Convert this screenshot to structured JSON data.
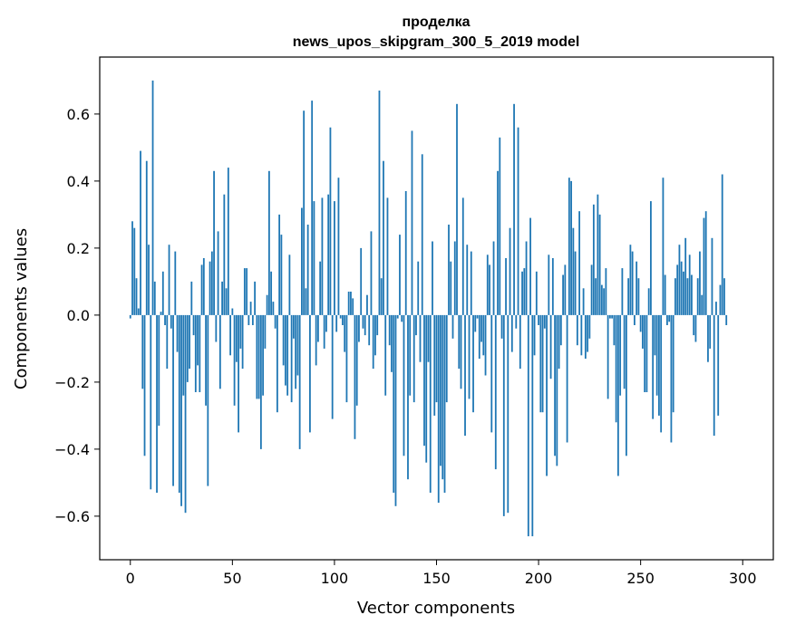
{
  "chart_data": {
    "type": "bar",
    "title_line1": "проделка",
    "title_line2": "news_upos_skipgram_300_5_2019 model",
    "xlabel": "Vector components",
    "ylabel": "Components values",
    "xlim": [
      -15,
      315
    ],
    "ylim": [
      -0.73,
      0.77
    ],
    "xticks": [
      0,
      50,
      100,
      150,
      200,
      250,
      300
    ],
    "xtick_labels": [
      "0",
      "50",
      "100",
      "150",
      "200",
      "250",
      "300"
    ],
    "yticks": [
      -0.6,
      -0.4,
      -0.2,
      0.0,
      0.2,
      0.4,
      0.6
    ],
    "ytick_labels": [
      "−0.6",
      "−0.4",
      "−0.2",
      "0.0",
      "0.2",
      "0.4",
      "0.6"
    ],
    "bar_color": "#1f77b4",
    "grid": false,
    "values": [
      -0.01,
      0.28,
      0.26,
      0.11,
      0.02,
      0.49,
      -0.22,
      -0.42,
      0.46,
      0.21,
      -0.52,
      0.7,
      0.1,
      -0.53,
      -0.33,
      0.01,
      0.13,
      -0.03,
      -0.16,
      0.21,
      -0.04,
      -0.51,
      0.19,
      -0.11,
      -0.53,
      -0.57,
      -0.24,
      -0.59,
      -0.2,
      -0.16,
      0.1,
      -0.06,
      -0.23,
      -0.15,
      -0.23,
      0.15,
      0.17,
      -0.27,
      -0.51,
      0.16,
      0.19,
      0.43,
      -0.08,
      0.25,
      -0.22,
      0.1,
      0.36,
      0.08,
      0.44,
      -0.12,
      0.02,
      -0.27,
      -0.14,
      -0.35,
      -0.1,
      -0.16,
      0.14,
      0.14,
      -0.03,
      0.04,
      -0.03,
      0.1,
      -0.25,
      -0.25,
      -0.4,
      -0.24,
      -0.1,
      0.06,
      0.43,
      0.13,
      0.04,
      -0.04,
      -0.29,
      0.3,
      0.24,
      -0.15,
      -0.21,
      -0.24,
      0.18,
      -0.26,
      -0.07,
      -0.22,
      -0.18,
      -0.4,
      0.32,
      0.61,
      0.08,
      0.27,
      -0.35,
      0.64,
      0.34,
      -0.15,
      -0.08,
      0.16,
      0.35,
      -0.1,
      -0.05,
      0.36,
      0.56,
      -0.31,
      0.34,
      -0.05,
      0.41,
      -0.01,
      -0.03,
      -0.11,
      -0.26,
      0.07,
      0.07,
      0.05,
      -0.37,
      -0.27,
      -0.08,
      0.2,
      -0.04,
      -0.06,
      0.06,
      -0.09,
      0.25,
      -0.16,
      -0.12,
      -0.06,
      0.67,
      0.11,
      0.46,
      -0.24,
      0.35,
      -0.09,
      -0.17,
      -0.53,
      -0.57,
      -0.01,
      0.24,
      -0.02,
      -0.42,
      0.37,
      -0.49,
      -0.24,
      0.55,
      -0.26,
      -0.06,
      0.16,
      -0.14,
      0.48,
      -0.39,
      -0.44,
      -0.14,
      -0.53,
      0.22,
      -0.3,
      -0.26,
      -0.56,
      -0.45,
      -0.49,
      -0.53,
      -0.26,
      0.27,
      0.16,
      -0.07,
      0.22,
      0.63,
      -0.16,
      -0.22,
      0.35,
      -0.36,
      0.21,
      -0.25,
      0.19,
      -0.29,
      -0.05,
      -0.01,
      -0.13,
      -0.08,
      -0.12,
      -0.18,
      0.18,
      0.15,
      -0.35,
      0.22,
      -0.46,
      0.43,
      0.53,
      -0.07,
      -0.6,
      0.17,
      -0.59,
      0.26,
      -0.11,
      0.63,
      -0.04,
      0.56,
      -0.16,
      0.13,
      0.14,
      0.22,
      -0.66,
      0.29,
      -0.66,
      -0.12,
      0.13,
      -0.03,
      -0.29,
      -0.29,
      -0.04,
      -0.48,
      0.18,
      -0.19,
      0.17,
      -0.42,
      -0.45,
      -0.16,
      -0.09,
      0.12,
      0.15,
      -0.38,
      0.41,
      0.4,
      0.26,
      0.19,
      -0.09,
      0.31,
      -0.12,
      0.08,
      -0.13,
      -0.11,
      -0.07,
      0.15,
      0.33,
      0.11,
      0.36,
      0.3,
      0.09,
      0.08,
      0.14,
      -0.25,
      -0.01,
      -0.01,
      -0.09,
      -0.32,
      -0.48,
      -0.24,
      0.14,
      -0.22,
      -0.42,
      0.11,
      0.21,
      0.19,
      -0.03,
      0.16,
      0.11,
      -0.05,
      -0.1,
      -0.23,
      -0.23,
      0.08,
      0.34,
      -0.31,
      -0.12,
      -0.24,
      -0.3,
      -0.35,
      0.41,
      0.12,
      -0.03,
      -0.02,
      -0.38,
      -0.29,
      0.11,
      0.15,
      0.21,
      0.16,
      0.13,
      0.23,
      0.11,
      0.18,
      0.12,
      -0.06,
      -0.08,
      0.11,
      0.19,
      0.06,
      0.29,
      0.31,
      -0.14,
      -0.1,
      0.23,
      -0.36,
      0.04,
      -0.3,
      0.09,
      0.42,
      0.11,
      -0.03
    ]
  }
}
